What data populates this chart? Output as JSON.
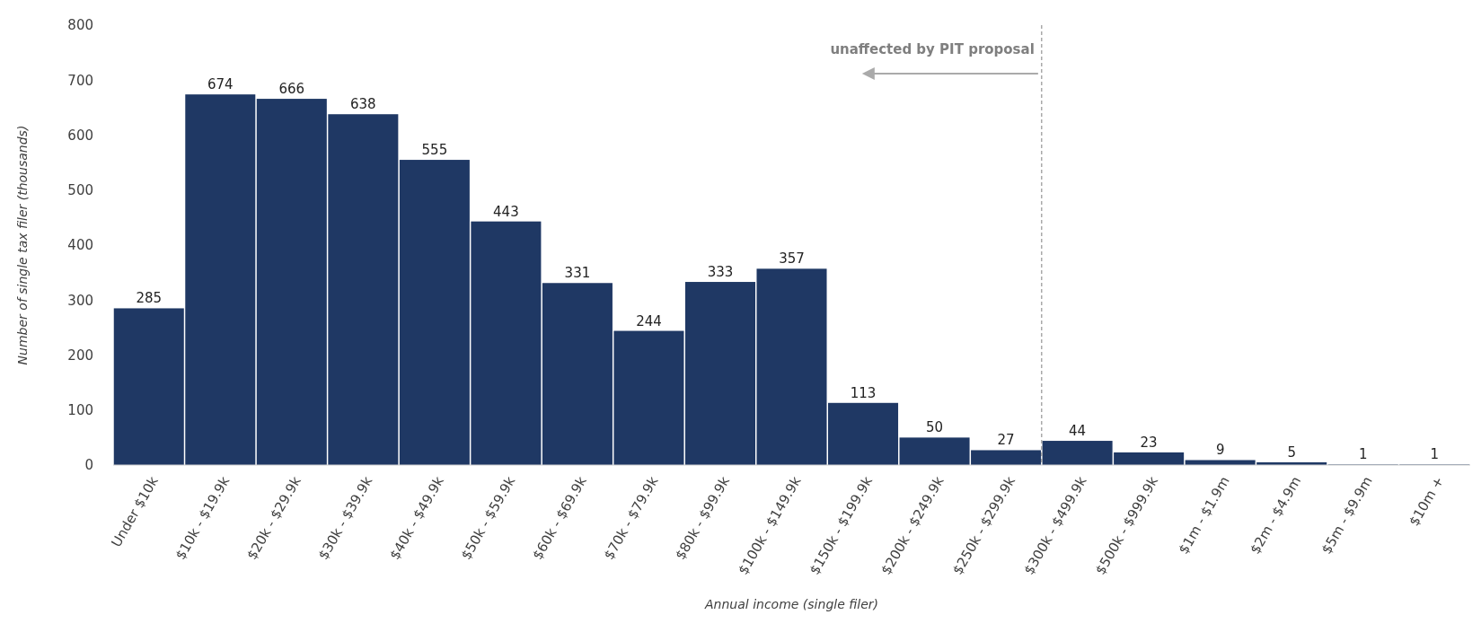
{
  "chart_data": {
    "type": "bar",
    "xlabel": "Annual income (single filer)",
    "ylabel": "Number of single tax filer (thousands)",
    "categories": [
      "Under $10k",
      "$10k - $19.9k",
      "$20k - $29.9k",
      "$30k - $39.9k",
      "$40k - $49.9k",
      "$50k - $59.9k",
      "$60k - $69.9k",
      "$70k - $79.9k",
      "$80k - $99.9k",
      "$100k - $149.9k",
      "$150k - $199.9k",
      "$200k - $249.9k",
      "$250k - $299.9k",
      "$300k - $499.9k",
      "$500k - $999.9k",
      "$1m - $1.9m",
      "$2m - $4.9m",
      "$5m - $9.9m",
      "$10m +"
    ],
    "values": [
      285,
      674,
      666,
      638,
      555,
      443,
      331,
      244,
      333,
      357,
      113,
      50,
      27,
      44,
      23,
      9,
      5,
      1,
      1
    ],
    "color": "#1f3864",
    "ylim": [
      0,
      800
    ],
    "yticks": [
      0,
      100,
      200,
      300,
      400,
      500,
      600,
      700,
      800
    ],
    "grid": false,
    "data_labels": true,
    "ref_lines": [
      {
        "axis": "x",
        "value": "$300k - $499.9k",
        "label": "unaffected by PIT proposal",
        "color": "#7f7f7f",
        "line_style": "dashed"
      }
    ]
  }
}
